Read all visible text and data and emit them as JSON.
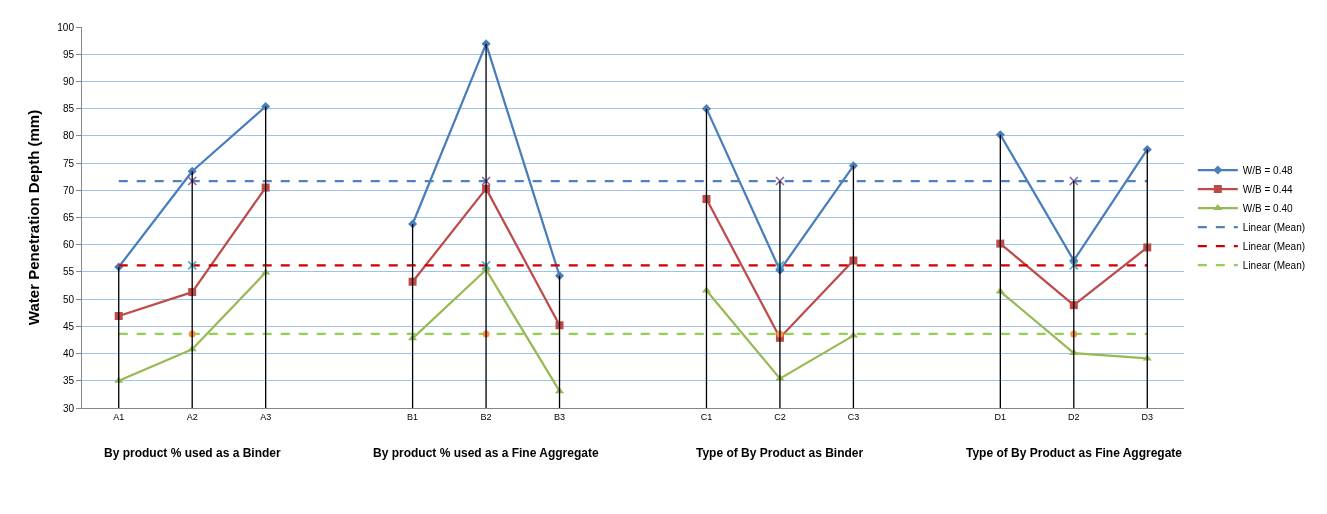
{
  "chart_data": {
    "type": "line",
    "ylabel": "Water Penetration Depth (mm)",
    "categories": [
      "A1",
      "A2",
      "A3",
      null,
      "B1",
      "B2",
      "B3",
      null,
      "C1",
      "C2",
      "C3",
      null,
      "D1",
      "D2",
      "D3"
    ],
    "series": [
      {
        "name": "W/B = 0.48",
        "color": "#4a7ebb",
        "marker": "diamond",
        "values": [
          55.9,
          73.5,
          85.4,
          null,
          63.8,
          96.9,
          54.3,
          null,
          85.0,
          55.3,
          74.5,
          null,
          80.2,
          57.1,
          77.5
        ]
      },
      {
        "name": "W/B = 0.44",
        "color": "#be4b48",
        "marker": "square",
        "values": [
          46.9,
          51.3,
          70.5,
          null,
          53.2,
          70.3,
          45.2,
          null,
          68.4,
          42.9,
          57.1,
          null,
          60.2,
          48.9,
          59.5
        ]
      },
      {
        "name": "W/B = 0.40",
        "color": "#98b954",
        "marker": "triangle",
        "values": [
          35.0,
          40.8,
          54.9,
          null,
          42.8,
          55.4,
          33.1,
          null,
          51.6,
          35.4,
          43.3,
          null,
          51.4,
          40.1,
          39.1
        ]
      },
      {
        "name": "Linear (Mean)",
        "color": "#4f81bd",
        "line_style": "dashed",
        "marker": "none",
        "values": [
          71.7,
          71.7,
          71.7,
          71.7,
          71.7,
          71.7,
          71.7,
          71.7,
          71.7,
          71.7,
          71.7,
          71.7,
          71.7,
          71.7,
          71.7
        ]
      },
      {
        "name": "Linear (Mean)",
        "color": "#cc0000",
        "line_style": "dashed",
        "marker": "none",
        "values": [
          56.2,
          56.2,
          56.2,
          56.2,
          56.2,
          56.2,
          56.2,
          56.2,
          56.2,
          56.2,
          56.2,
          56.2,
          56.2,
          56.2,
          56.2
        ]
      },
      {
        "name": "Linear (Mean)",
        "color": "#92d050",
        "line_style": "dashed",
        "marker": "none",
        "values": [
          43.6,
          43.6,
          43.6,
          43.6,
          43.6,
          43.6,
          43.6,
          43.6,
          43.6,
          43.6,
          43.6,
          43.6,
          43.6,
          43.6,
          43.6
        ]
      },
      {
        "type": "scatter",
        "color": "#8064a2",
        "marker": "cross",
        "values": [
          null,
          71.7,
          null,
          null,
          null,
          71.7,
          null,
          null,
          null,
          71.7,
          null,
          null,
          null,
          71.7,
          null
        ]
      },
      {
        "type": "scatter",
        "color": "#4bacc6",
        "marker": "cross",
        "values": [
          null,
          56.2,
          null,
          null,
          null,
          56.2,
          null,
          null,
          null,
          56.2,
          null,
          null,
          null,
          56.2,
          null
        ]
      },
      {
        "type": "scatter",
        "color": "#f79646",
        "marker": "circle",
        "values": [
          null,
          43.6,
          null,
          null,
          null,
          43.6,
          null,
          null,
          null,
          43.6,
          null,
          null,
          null,
          43.6,
          null
        ]
      },
      {
        "type": "bar",
        "color": "#000000",
        "base": [
          30,
          30,
          30,
          null,
          30,
          30,
          30,
          null,
          30,
          30,
          30,
          null,
          30,
          30,
          30
        ],
        "values": [
          25.9,
          43.5,
          55.4,
          null,
          33.8,
          66.9,
          24.3,
          null,
          55.0,
          41.7,
          44.5,
          null,
          50.2,
          41.7,
          47.5
        ]
      }
    ],
    "ylim": [
      30,
      100
    ],
    "yticks": [
      30,
      35,
      40,
      45,
      50,
      55,
      60,
      65,
      70,
      75,
      80,
      85,
      90,
      95,
      100
    ],
    "grid": "y",
    "legend": "right",
    "annotations": [
      "By product % used as a Binder",
      "By product % used as a Fine Aggregate",
      "Type of By Product as Binder",
      "Type of By Product as Fine Aggregate"
    ]
  }
}
